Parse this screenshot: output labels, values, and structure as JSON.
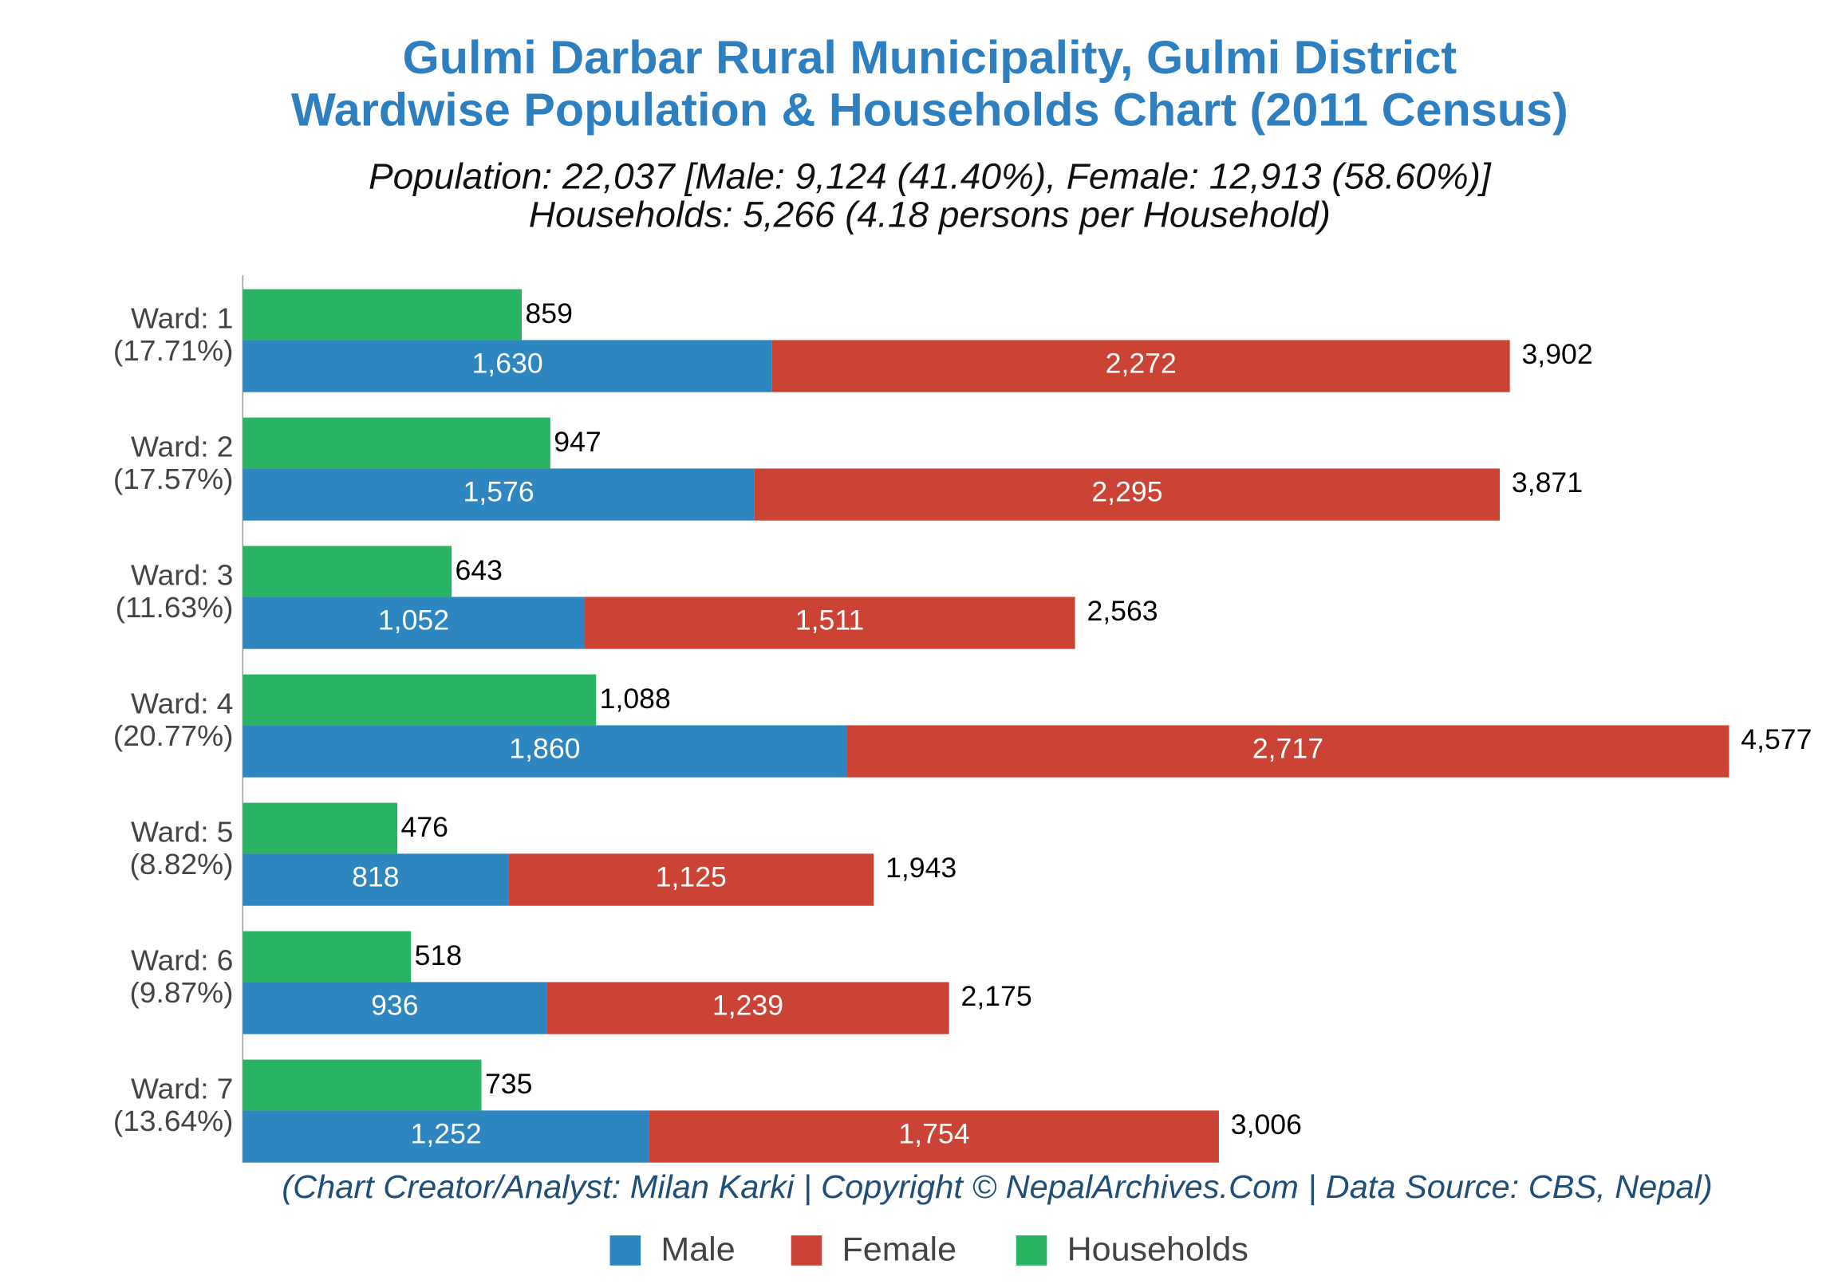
{
  "chart_data": {
    "type": "bar",
    "orientation": "horizontal",
    "title": [
      "Gulmi Darbar Rural Municipality, Gulmi District",
      "Wardwise Population & Households Chart (2011 Census)"
    ],
    "subtitle": [
      "Population: 22,037 [Male: 9,124 (41.40%), Female: 12,913 (58.60%)]",
      "Households: 5,266 (4.18 persons per Household)"
    ],
    "credit": "(Chart Creator/Analyst: Milan Karki | Copyright © NepalArchives.Com | Data Source: CBS, Nepal)",
    "categories": [
      "Ward: 1",
      "Ward: 2",
      "Ward: 3",
      "Ward: 4",
      "Ward: 5",
      "Ward: 6",
      "Ward: 7"
    ],
    "category_notes": [
      "(17.71%)",
      "(17.57%)",
      "(11.63%)",
      "(20.77%)",
      "(8.82%)",
      "(9.87%)",
      "(13.64%)"
    ],
    "xlim": [
      0,
      4577
    ],
    "series": [
      {
        "name": "Male",
        "color": "#2e86c1",
        "stack": "population",
        "values": [
          1630,
          1576,
          1052,
          1860,
          818,
          936,
          1252
        ],
        "value_labels": [
          "1,630",
          "1,576",
          "1,052",
          "1,860",
          "818",
          "936",
          "1,252"
        ]
      },
      {
        "name": "Female",
        "color": "#cb4335",
        "stack": "population",
        "values": [
          2272,
          2295,
          1511,
          2717,
          1125,
          1239,
          1754
        ],
        "value_labels": [
          "2,272",
          "2,295",
          "1,511",
          "2,717",
          "1,125",
          "1,239",
          "1,754"
        ]
      },
      {
        "name": "Households",
        "color": "#28b463",
        "stack": "households",
        "values": [
          859,
          947,
          643,
          1088,
          476,
          518,
          735
        ],
        "value_labels": [
          "859",
          "947",
          "643",
          "1,088",
          "476",
          "518",
          "735"
        ]
      }
    ],
    "totals": [
      3902,
      3871,
      2563,
      4577,
      1943,
      2175,
      3006
    ],
    "total_labels": [
      "3,902",
      "3,871",
      "2,563",
      "4,577",
      "1,943",
      "2,175",
      "3,006"
    ],
    "legend": "bottom"
  }
}
